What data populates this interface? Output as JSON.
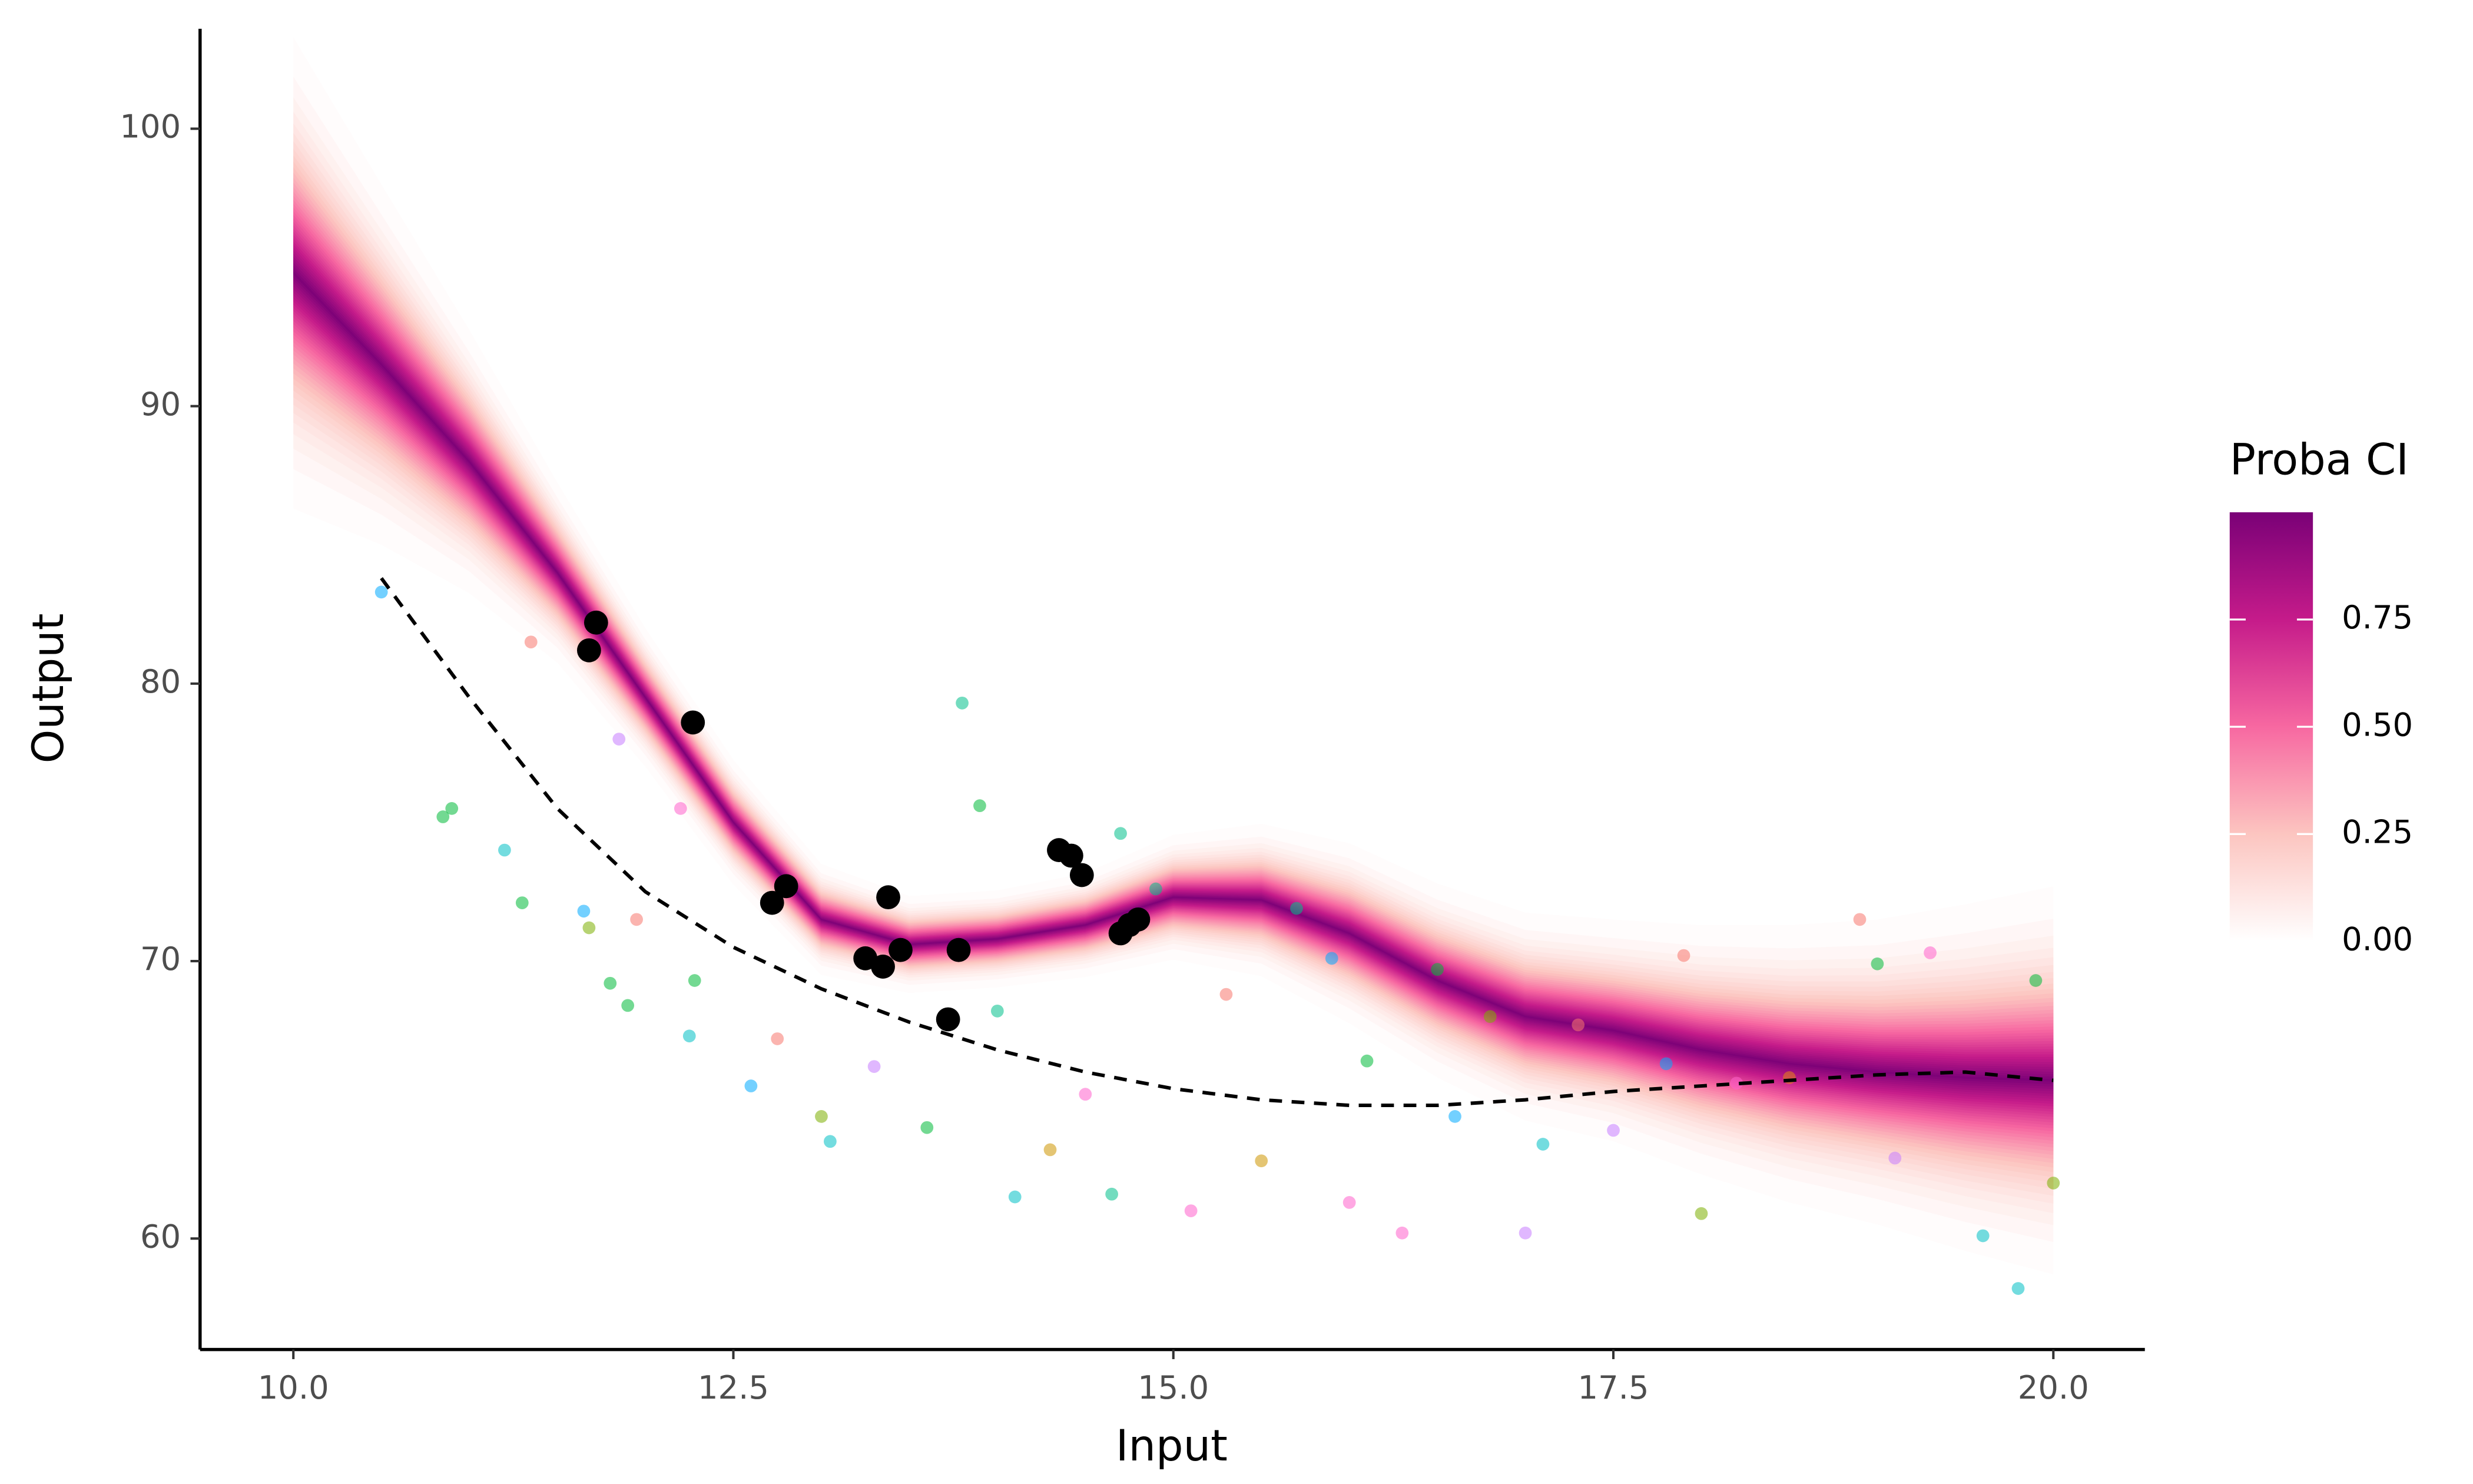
{
  "chart_data": {
    "type": "gp_band",
    "x_label": "Input",
    "y_label": "Output",
    "xlim": [
      9.47,
      20.52
    ],
    "ylim": [
      56.0,
      103.6
    ],
    "xticks": [
      {
        "value": 10,
        "label": "10.0"
      },
      {
        "value": 12.5,
        "label": "12.5"
      },
      {
        "value": 15,
        "label": "15.0"
      },
      {
        "value": 17.5,
        "label": "17.5"
      },
      {
        "value": 20,
        "label": "20.0"
      }
    ],
    "yticks": [
      60,
      70,
      80,
      90,
      100
    ],
    "legend_title": "Proba CI",
    "clim": [
      0,
      1
    ],
    "cticks": [
      {
        "value": 0,
        "label": "0.00"
      },
      {
        "value": 0.25,
        "label": "0.25"
      },
      {
        "value": 0.5,
        "label": "0.50"
      },
      {
        "value": 0.75,
        "label": "0.75"
      }
    ],
    "colorbar_colors": [
      "#ffffff",
      "#fcc5c0",
      "#f768a1",
      "#c51b8a",
      "#7a0177"
    ],
    "band": {
      "x": [
        10,
        10.5,
        11,
        11.5,
        12,
        12.5,
        13,
        13.5,
        14,
        14.5,
        15,
        15.5,
        16,
        16.5,
        17,
        17.5,
        18,
        18.5,
        19,
        19.5,
        20
      ],
      "center": [
        94.8,
        91.5,
        88,
        84,
        79.5,
        75,
        71.5,
        70.6,
        70.8,
        71.3,
        72.3,
        72.2,
        71,
        69.3,
        68,
        67.5,
        66.8,
        66.3,
        66,
        65.8,
        65.7
      ],
      "sd": [
        3.4,
        2.6,
        1.9,
        1.3,
        1.0,
        0.9,
        0.8,
        0.7,
        0.7,
        0.75,
        0.9,
        1.1,
        1.3,
        1.4,
        1.5,
        1.6,
        1.8,
        2.0,
        2.2,
        2.5,
        2.8
      ]
    },
    "mean": {
      "x": [
        10.5,
        11,
        11.5,
        12,
        12.5,
        13,
        13.5,
        14,
        14.5,
        15,
        15.5,
        16,
        16.5,
        17,
        17.5,
        18,
        18.5,
        19,
        19.5,
        20
      ],
      "values": [
        83.8,
        79.5,
        75.5,
        72.5,
        70.5,
        69,
        67.8,
        66.8,
        66,
        65.4,
        65,
        64.8,
        64.8,
        65,
        65.3,
        65.5,
        65.7,
        65.9,
        66,
        65.7
      ]
    },
    "observed": {
      "color": "#000000",
      "x": [
        11.68,
        11.72,
        12.27,
        12.72,
        12.8,
        13.25,
        13.35,
        13.38,
        13.45,
        13.72,
        13.78,
        14.35,
        14.42,
        14.48,
        14.7,
        14.75,
        14.8
      ],
      "values": [
        81.2,
        82.2,
        78.6,
        72.1,
        72.7,
        70.1,
        69.8,
        72.3,
        70.4,
        67.9,
        70.4,
        74.0,
        73.8,
        73.1,
        71.0,
        71.3,
        71.5
      ]
    },
    "background": {
      "x": [
        10.5,
        10.85,
        10.9,
        11.2,
        11.3,
        11.35,
        11.65,
        11.68,
        11.8,
        11.85,
        11.9,
        11.95,
        12.2,
        12.25,
        12.28,
        12.6,
        12.75,
        13.0,
        13.05,
        13.3,
        13.6,
        13.8,
        13.9,
        14.0,
        14.1,
        14.3,
        14.5,
        14.65,
        14.7,
        14.9,
        15.1,
        15.3,
        15.5,
        15.7,
        15.9,
        16.0,
        16.1,
        16.3,
        16.5,
        16.6,
        16.8,
        17.0,
        17.1,
        17.3,
        17.5,
        17.8,
        17.9,
        18.0,
        18.2,
        18.5,
        18.9,
        19.0,
        19.1,
        19.3,
        19.6,
        19.8,
        19.9,
        20.0
      ],
      "values": [
        83.3,
        75.2,
        75.5,
        74.0,
        72.1,
        81.5,
        71.8,
        71.2,
        69.2,
        78.0,
        68.4,
        71.5,
        75.5,
        67.3,
        69.3,
        65.5,
        67.2,
        64.4,
        63.5,
        66.2,
        64.0,
        79.3,
        75.6,
        68.2,
        61.5,
        63.2,
        65.2,
        61.6,
        74.6,
        72.6,
        61.0,
        68.8,
        62.8,
        71.9,
        70.1,
        61.3,
        66.4,
        60.2,
        69.7,
        64.4,
        68.0,
        60.2,
        63.4,
        67.7,
        63.9,
        66.3,
        70.2,
        60.9,
        65.6,
        65.8,
        71.5,
        69.9,
        62.9,
        70.3,
        60.1,
        58.2,
        69.3,
        62.0
      ],
      "colors": [
        "#00a9ff",
        "#00ba38",
        "#00ba38",
        "#00bfc4",
        "#00ba38",
        "#f8766d",
        "#00a9ff",
        "#7cae00",
        "#00ba38",
        "#c77cff",
        "#00ba38",
        "#f8766d",
        "#ff61cc",
        "#00bfc4",
        "#00ba38",
        "#00a9ff",
        "#f8766d",
        "#7cae00",
        "#00bfc4",
        "#c77cff",
        "#00ba38",
        "#00c08b",
        "#00ba38",
        "#00c08b",
        "#00bfc4",
        "#cd9600",
        "#ff61cc",
        "#00c08b",
        "#00c08b",
        "#00c08b",
        "#ff61cc",
        "#f8766d",
        "#cd9600",
        "#00c08b",
        "#00a9ff",
        "#ff61cc",
        "#00ba38",
        "#ff61cc",
        "#00ba38",
        "#00a9ff",
        "#7cae00",
        "#c77cff",
        "#00bfc4",
        "#f8766d",
        "#c77cff",
        "#00a9ff",
        "#f8766d",
        "#7cae00",
        "#ff61cc",
        "#e68613",
        "#f8766d",
        "#00ba38",
        "#c77cff",
        "#ff61cc",
        "#00bfc4",
        "#00bfc4",
        "#00ba38",
        "#7cae00"
      ]
    }
  }
}
